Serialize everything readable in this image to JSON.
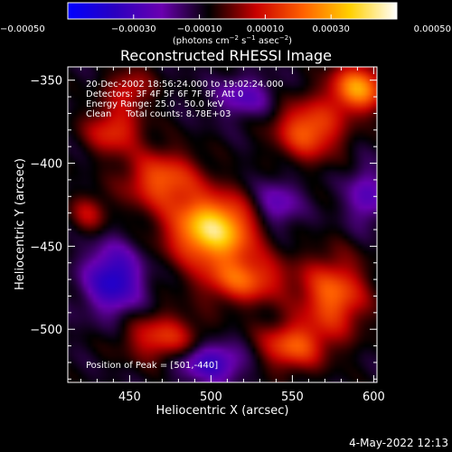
{
  "chart_data": {
    "type": "heatmap",
    "title": "Reconstructed RHESSI Image",
    "xlabel": "Heliocentric X (arcsec)",
    "ylabel": "Heliocentric Y (arcsec)",
    "xlim": [
      412,
      602
    ],
    "ylim": [
      -532,
      -342
    ],
    "x_ticks": [
      450,
      500,
      550,
      600
    ],
    "x_tick_labels": [
      "450",
      "500",
      "550",
      "600"
    ],
    "y_ticks": [
      -350,
      -400,
      -450,
      -500
    ],
    "y_tick_labels": [
      "−350",
      "−400",
      "−450",
      "−500"
    ],
    "colorbar": {
      "range": [
        -0.0005,
        0.0005
      ],
      "ticks": [
        -0.0005,
        -0.0003,
        -0.0001,
        0.0001,
        0.0003,
        0.0005
      ],
      "tick_labels": [
        "−0.00050",
        "−0.00030",
        "−0.00010",
        "0.00010",
        "0.00030",
        "0.00050"
      ],
      "unit_parts": [
        "(photons cm",
        "−2",
        " s",
        "−1",
        " asec",
        "−2",
        ")"
      ],
      "colors": [
        "#0000ff",
        "#2a00c0",
        "#6a00b0",
        "#000000",
        "#c80000",
        "#ff6000",
        "#ffd000",
        "#ffffff"
      ]
    },
    "info_lines": [
      "20-Dec-2002 18:56:24.000 to 19:02:24.000",
      "Detectors: 3F 4F 5F 6F 7F 8F, Att 0",
      "Energy Range: 25.0 - 50.0 keV",
      "Clean     Total counts: 8.78E+03"
    ],
    "peak_label": "Position of Peak = [501,-440]",
    "peak": {
      "x": 501,
      "y": -440
    },
    "sources": [
      {
        "x": 501,
        "y": -440,
        "sx": 18,
        "sy": 14,
        "amp": 1.0
      },
      {
        "x": 470,
        "y": -410,
        "sx": 16,
        "sy": 12,
        "amp": 0.55
      },
      {
        "x": 520,
        "y": -470,
        "sx": 18,
        "sy": 10,
        "amp": 0.55
      },
      {
        "x": 560,
        "y": -380,
        "sx": 14,
        "sy": 12,
        "amp": 0.6
      },
      {
        "x": 590,
        "y": -355,
        "sx": 12,
        "sy": 10,
        "amp": 0.75
      },
      {
        "x": 575,
        "y": -480,
        "sx": 14,
        "sy": 16,
        "amp": 0.6
      },
      {
        "x": 550,
        "y": -510,
        "sx": 14,
        "sy": 10,
        "amp": 0.55
      },
      {
        "x": 440,
        "y": -380,
        "sx": 12,
        "sy": 10,
        "amp": 0.45
      },
      {
        "x": 470,
        "y": -505,
        "sx": 16,
        "sy": 10,
        "amp": 0.45
      },
      {
        "x": 450,
        "y": -355,
        "sx": 10,
        "sy": 8,
        "amp": 0.35
      },
      {
        "x": 425,
        "y": -430,
        "sx": 8,
        "sy": 8,
        "amp": 0.3
      }
    ],
    "negatives": [
      {
        "x": 440,
        "y": -470,
        "sx": 12,
        "sy": 14,
        "amp": 0.6
      },
      {
        "x": 500,
        "y": -520,
        "sx": 14,
        "sy": 8,
        "amp": 0.5
      },
      {
        "x": 540,
        "y": -425,
        "sx": 10,
        "sy": 10,
        "amp": 0.35
      },
      {
        "x": 520,
        "y": -360,
        "sx": 12,
        "sy": 8,
        "amp": 0.35
      },
      {
        "x": 595,
        "y": -420,
        "sx": 8,
        "sy": 12,
        "amp": 0.35
      }
    ]
  },
  "footer": {
    "timestamp": "4-May-2022 12:13"
  }
}
